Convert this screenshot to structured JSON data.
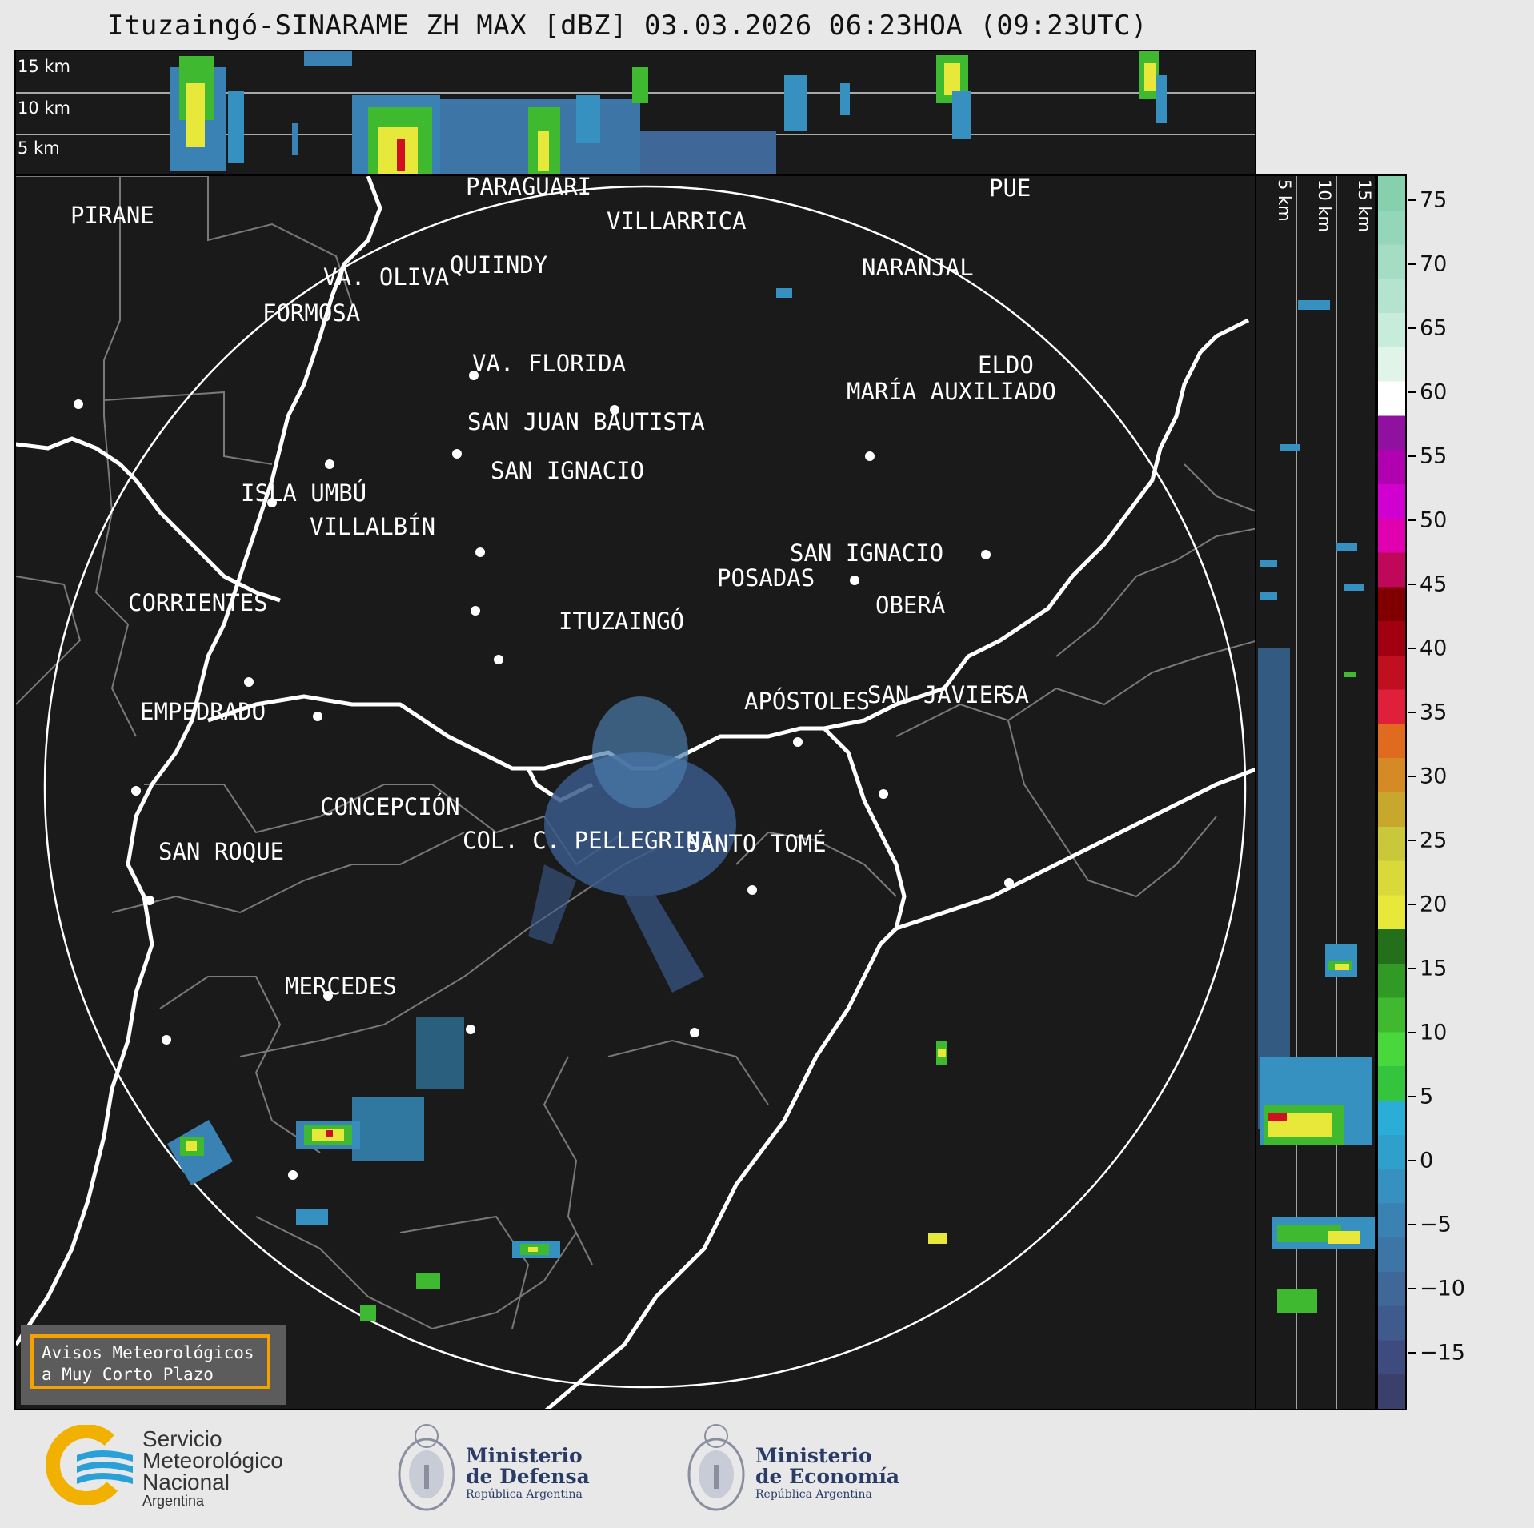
{
  "title": "Ituzaingó-SINARAME ZH MAX [dBZ] 03.03.2026 06:23HOA (09:23UTC)",
  "top_panel": {
    "km_labels": [
      "15 km",
      "10 km",
      "5 km"
    ]
  },
  "side_panel": {
    "km_labels": [
      "5 km",
      "10 km",
      "15 km"
    ]
  },
  "map": {
    "cities": [
      "PIRANE",
      "PARAGUARÍ",
      "VILLARRICA",
      "QUIINDY",
      "VA. OLIVA",
      "FORMOSA",
      "NARANJAL",
      "VA. FLORIDA",
      "ELDO",
      "MARÍA AUXILIADO",
      "SAN JUAN BAUTISTA",
      "SAN IGNACIO",
      "ISLA UMBÚ",
      "VILLALBÍN",
      "SAN IGNACIO",
      "POSADAS",
      "CORRIENTES",
      "ITUZAINGÓ",
      "OBERÁ",
      "APÓSTOLES",
      "SAN JAVIER",
      "SA",
      "EMPEDRADO",
      "CONCEPCIÓN",
      "COL. C. PELLEGRINI",
      "SANTO TOMÉ",
      "SAN ROQUE",
      "MERCEDES",
      "PUE"
    ]
  },
  "colorbar": {
    "unit": "dBZ",
    "ticks": [
      "75",
      "70",
      "65",
      "60",
      "55",
      "50",
      "45",
      "40",
      "35",
      "30",
      "25",
      "20",
      "15",
      "10",
      "5",
      "0",
      "−5",
      "−10",
      "−15"
    ],
    "colors": [
      "#3b3f6b",
      "#3e4b7e",
      "#3f5a8d",
      "#3f6899",
      "#3d75a6",
      "#3a82b3",
      "#3690c0",
      "#2f9fcc",
      "#2aaed8",
      "#35c43d",
      "#48d83c",
      "#3fba30",
      "#319a25",
      "#236f1a",
      "#e8e83a",
      "#d9d93a",
      "#c8c83a",
      "#c7a82c",
      "#d58a25",
      "#e06a1e",
      "#e0203a",
      "#c01020",
      "#a00010",
      "#800000",
      "#c0085a",
      "#e000b0",
      "#d000d0",
      "#b000b0",
      "#9010a0",
      "#ffffff",
      "#e0f4ea",
      "#c8ecdc",
      "#b4e4cf",
      "#a4dcc4",
      "#94d6b9",
      "#86d0ae"
    ]
  },
  "warning": {
    "line1": "Avisos Meteorológicos",
    "line2": "a Muy Corto Plazo"
  },
  "logos": {
    "smn": {
      "line1": "Servicio",
      "line2": "Meteorológico",
      "line3": "Nacional",
      "line4": "Argentina",
      "icon": "smn-logo-icon"
    },
    "defensa": {
      "line1": "Ministerio",
      "line2": "de Defensa",
      "line3": "República Argentina",
      "icon": "coat-of-arms-icon"
    },
    "economia": {
      "line1": "Ministerio",
      "line2": "de Economía",
      "line3": "República Argentina",
      "icon": "coat-of-arms-icon"
    }
  }
}
